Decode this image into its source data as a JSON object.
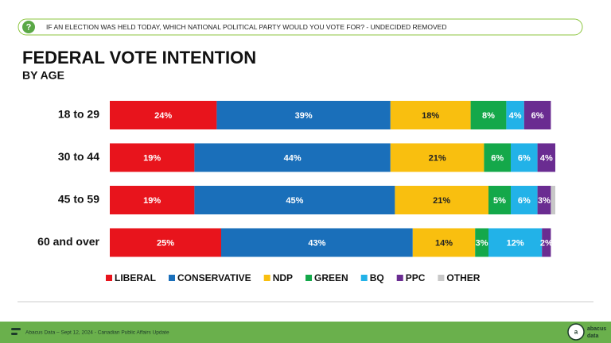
{
  "header": {
    "question": "IF AN ELECTION WAS HELD TODAY, WHICH NATIONAL POLITICAL PARTY WOULD YOU VOTE FOR? - UNDECIDED REMOVED"
  },
  "chart_data": {
    "type": "stacked-bar-horizontal",
    "title": "FEDERAL VOTE INTENTION",
    "subtitle": "BY AGE",
    "categories": [
      "18 to 29",
      "30 to 44",
      "45 to 59",
      "60 and over"
    ],
    "series": [
      {
        "name": "LIBERAL",
        "color": "#e8141c",
        "values": [
          24,
          19,
          19,
          25
        ],
        "value_labels": [
          "24%",
          "19%",
          "19%",
          "25%"
        ]
      },
      {
        "name": "CONSERVATIVE",
        "color": "#1a6fba",
        "values": [
          39,
          44,
          45,
          43
        ],
        "value_labels": [
          "39%",
          "44%",
          "45%",
          "43%"
        ]
      },
      {
        "name": "NDP",
        "color": "#f9bf0f",
        "values": [
          18,
          21,
          21,
          14
        ],
        "value_labels": [
          "18%",
          "21%",
          "21%",
          "14%"
        ]
      },
      {
        "name": "GREEN",
        "color": "#14a84a",
        "values": [
          8,
          6,
          5,
          3
        ],
        "value_labels": [
          "8%",
          "6%",
          "5%",
          "3%"
        ]
      },
      {
        "name": "BQ",
        "color": "#22b2e8",
        "values": [
          4,
          6,
          6,
          12
        ],
        "value_labels": [
          "4%",
          "6%",
          "6%",
          "12%"
        ]
      },
      {
        "name": "PPC",
        "color": "#6a2c91",
        "values": [
          6,
          4,
          3,
          2
        ],
        "value_labels": [
          "6%",
          "4%",
          "3%",
          "2%"
        ]
      },
      {
        "name": "OTHER",
        "color": "#c8c8c8",
        "values": [
          0,
          0,
          1,
          0
        ]
      }
    ],
    "legend": "bottom"
  },
  "footer": {
    "source": "Abacus Data – Sept 12, 2024 - Canadian Public Affairs Update",
    "logo_top": "abacus",
    "logo_bottom": "data"
  }
}
